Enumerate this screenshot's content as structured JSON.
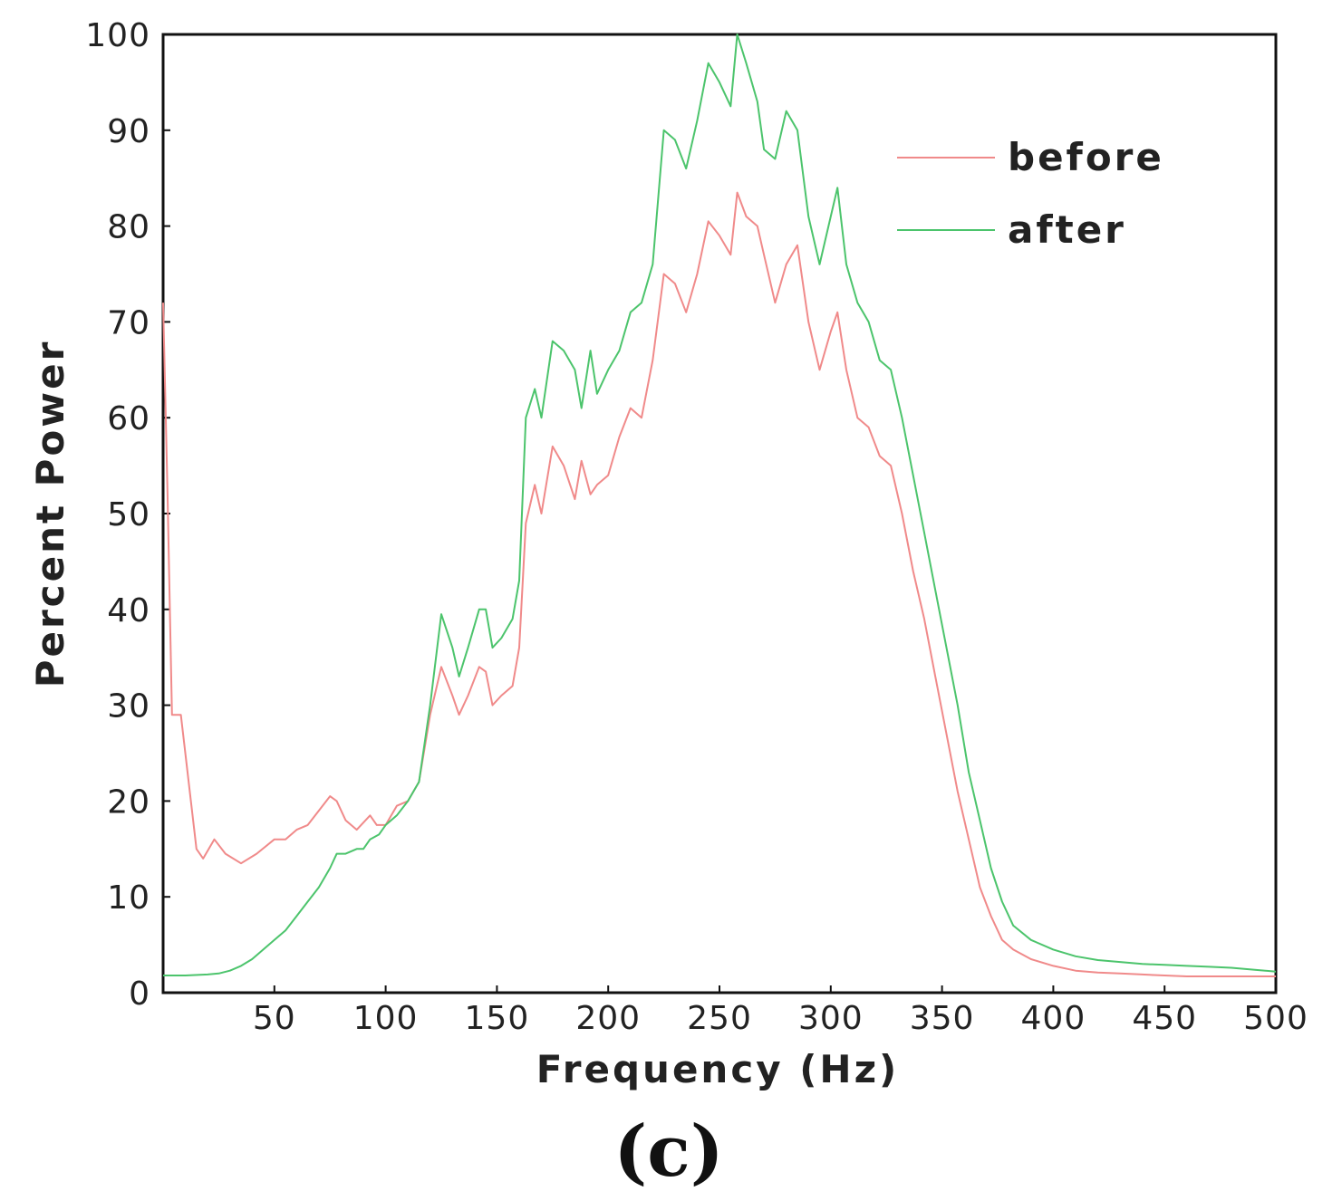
{
  "chart_data": {
    "type": "line",
    "title": "",
    "panel_label": "(c)",
    "xlabel": "Frequency (Hz)",
    "ylabel": "Percent Power",
    "xlim": [
      0,
      500
    ],
    "ylim": [
      0,
      100
    ],
    "xticks": [
      50,
      100,
      150,
      200,
      250,
      300,
      350,
      400,
      450,
      500
    ],
    "yticks": [
      0,
      10,
      20,
      30,
      40,
      50,
      60,
      70,
      80,
      90,
      100
    ],
    "grid": false,
    "legend_position": "top-right",
    "series": [
      {
        "name": "before",
        "color": "#f08a8a",
        "x": [
          0,
          2,
          4,
          8,
          15,
          18,
          23,
          28,
          35,
          42,
          50,
          55,
          60,
          65,
          70,
          75,
          78,
          82,
          87,
          93,
          96,
          100,
          105,
          110,
          115,
          120,
          125,
          130,
          133,
          137,
          142,
          145,
          148,
          152,
          157,
          160,
          163,
          167,
          170,
          175,
          180,
          185,
          188,
          192,
          195,
          200,
          205,
          210,
          215,
          220,
          225,
          230,
          235,
          240,
          245,
          250,
          255,
          258,
          262,
          267,
          270,
          275,
          280,
          285,
          290,
          295,
          300,
          303,
          307,
          312,
          317,
          322,
          327,
          332,
          337,
          342,
          347,
          352,
          357,
          362,
          367,
          372,
          377,
          382,
          390,
          400,
          410,
          420,
          430,
          440,
          450,
          460,
          470,
          480,
          490,
          500
        ],
        "y": [
          72,
          52,
          29,
          29,
          15,
          14,
          16,
          14.5,
          13.5,
          14.5,
          16,
          16,
          17,
          17.5,
          19,
          20.5,
          20,
          18,
          17,
          18.5,
          17.5,
          17.5,
          19.5,
          20,
          22,
          29,
          34,
          31,
          29,
          31,
          34,
          33.5,
          30,
          31,
          32,
          36,
          49,
          53,
          50,
          57,
          55,
          51.5,
          55.5,
          52,
          53,
          54,
          58,
          61,
          60,
          66,
          75,
          74,
          71,
          75,
          80.5,
          79,
          77,
          83.5,
          81,
          80,
          77,
          72,
          76,
          78,
          70,
          65,
          69,
          71,
          65,
          60,
          59,
          56,
          55,
          50,
          44,
          39,
          33,
          27,
          21,
          16,
          11,
          8,
          5.5,
          4.5,
          3.5,
          2.8,
          2.3,
          2.1,
          2,
          1.9,
          1.8,
          1.7,
          1.7,
          1.7,
          1.7,
          1.7
        ],
        "legend_label": "before"
      },
      {
        "name": "after",
        "color": "#4cc46c",
        "x": [
          0,
          10,
          20,
          25,
          30,
          35,
          40,
          45,
          50,
          55,
          60,
          65,
          70,
          75,
          78,
          82,
          87,
          90,
          93,
          97,
          100,
          105,
          110,
          115,
          120,
          125,
          130,
          133,
          137,
          142,
          145,
          148,
          152,
          157,
          160,
          163,
          167,
          170,
          175,
          180,
          185,
          188,
          192,
          195,
          200,
          205,
          210,
          215,
          220,
          225,
          230,
          235,
          240,
          245,
          250,
          255,
          258,
          262,
          267,
          270,
          275,
          280,
          285,
          290,
          295,
          300,
          303,
          307,
          312,
          317,
          322,
          327,
          332,
          337,
          342,
          347,
          352,
          357,
          362,
          367,
          372,
          377,
          382,
          390,
          400,
          410,
          420,
          430,
          440,
          450,
          460,
          470,
          480,
          490,
          500
        ],
        "y": [
          1.8,
          1.8,
          1.9,
          2,
          2.3,
          2.8,
          3.5,
          4.5,
          5.5,
          6.5,
          8,
          9.5,
          11,
          13,
          14.5,
          14.5,
          15,
          15,
          16,
          16.5,
          17.5,
          18.5,
          20,
          22,
          30,
          39.5,
          36,
          33,
          36,
          40,
          40,
          36,
          37,
          39,
          43,
          60,
          63,
          60,
          68,
          67,
          65,
          61,
          67,
          62.5,
          65,
          67,
          71,
          72,
          76,
          90,
          89,
          86,
          91,
          97,
          95,
          92.5,
          100,
          97,
          93,
          88,
          87,
          92,
          90,
          81,
          76,
          81,
          84,
          76,
          72,
          70,
          66,
          65,
          60,
          54,
          48,
          42,
          36,
          30,
          23,
          18,
          13,
          9.5,
          7,
          5.5,
          4.5,
          3.8,
          3.4,
          3.2,
          3,
          2.9,
          2.8,
          2.7,
          2.6,
          2.4,
          2.2
        ],
        "legend_label": "after"
      }
    ]
  }
}
